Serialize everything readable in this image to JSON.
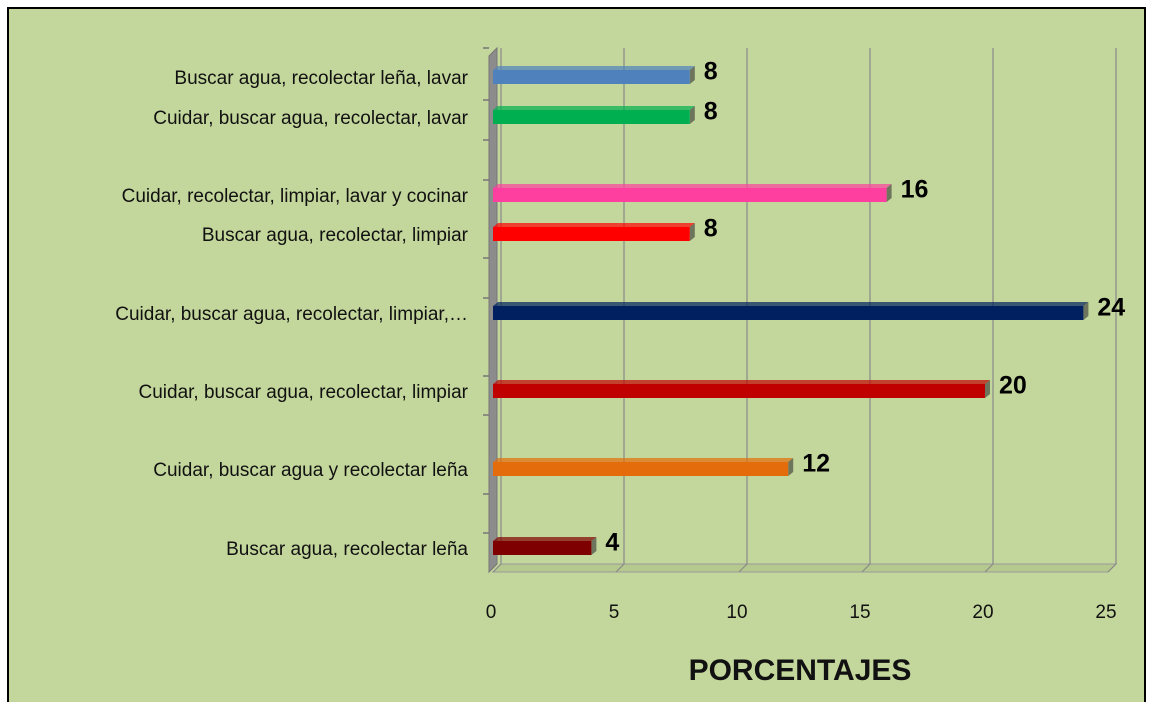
{
  "chart_data": {
    "type": "barh",
    "x_label": "PORCENTAJES",
    "categories": [
      "Buscar agua, recolectar leña, lavar",
      "Cuidar, buscar agua, recolectar, lavar",
      "Cuidar, recolectar, limpiar, lavar y cocinar",
      "Buscar agua, recolectar, limpiar",
      "Cuidar, buscar agua, recolectar, limpiar,…",
      "Cuidar, buscar agua, recolectar, limpiar",
      "Cuidar, buscar agua y recolectar leña",
      "Buscar agua, recolectar leña"
    ],
    "values": [
      8,
      8,
      16,
      8,
      24,
      20,
      12,
      4
    ],
    "colors": [
      "#4f81bd",
      "#00b050",
      "#ff3fa0",
      "#ff0000",
      "#002060",
      "#c00000",
      "#e46c0a",
      "#7f0000"
    ],
    "xlim": [
      0,
      25
    ],
    "xticks": [
      0,
      5,
      10,
      15,
      20,
      25
    ],
    "grid": true
  }
}
